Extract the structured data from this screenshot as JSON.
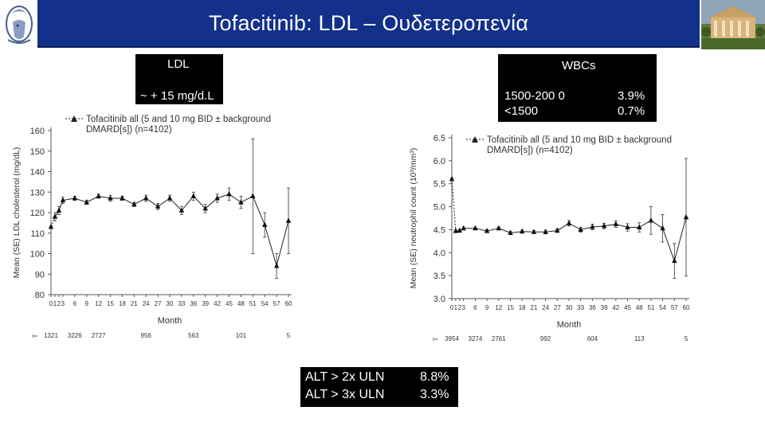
{
  "header": {
    "title": "Tofacitinib: LDL – Ουδετεροπενία"
  },
  "icons": {
    "left_logo": "athena-head-icon",
    "right_logo": "university-building-icon"
  },
  "ldl_box": {
    "label": "LDL",
    "change": "~ + 15 mg/d.L"
  },
  "wbc_box": {
    "label": "WBCs",
    "rows": [
      {
        "range": "1500-200 0",
        "pct": "3.9%"
      },
      {
        "range": "<1500",
        "pct": "0.7%"
      }
    ]
  },
  "alt_box": {
    "rows": [
      {
        "label": "ALT > 2x ULN",
        "pct": "8.8%"
      },
      {
        "label": "ALT > 3x ULN",
        "pct": "3.3%"
      }
    ]
  },
  "chart_data": [
    {
      "type": "line",
      "legend": [
        "Tofacitinib all (5 and 10 mg BID ± background",
        "DMARD[s]) (n=4102)"
      ],
      "xlabel": "Month",
      "ylabel": "Mean (SE) LDL cholesterol (mg/dL)",
      "ylim": [
        80,
        160
      ],
      "yticks": [
        80,
        90,
        100,
        110,
        120,
        130,
        140,
        150,
        160
      ],
      "xticks": [
        0,
        1,
        2,
        3,
        6,
        9,
        12,
        15,
        18,
        21,
        24,
        27,
        30,
        33,
        36,
        39,
        42,
        45,
        48,
        51,
        54,
        57,
        60
      ],
      "xtick_labels": [
        "0",
        "1",
        "2",
        "3",
        "6",
        "9",
        "12",
        "15",
        "18",
        "21",
        "24",
        "27",
        "30",
        "33",
        "36",
        "39",
        "42",
        "45",
        "48",
        "51",
        "54",
        "57",
        "60"
      ],
      "n_label": "n=",
      "n_at_risk": [
        {
          "month": 0,
          "n": "1321"
        },
        {
          "month": 6,
          "n": "3226"
        },
        {
          "month": 12,
          "n": "2727"
        },
        {
          "month": 24,
          "n": "956"
        },
        {
          "month": 36,
          "n": "563"
        },
        {
          "month": 48,
          "n": "101"
        },
        {
          "month": 60,
          "n": "5"
        }
      ],
      "points": [
        {
          "x": 0,
          "y": 113,
          "err": 0.5
        },
        {
          "x": 1,
          "y": 118,
          "err": 2
        },
        {
          "x": 2,
          "y": 121,
          "err": 2
        },
        {
          "x": 3,
          "y": 126,
          "err": 1.5
        },
        {
          "x": 6,
          "y": 127,
          "err": 1
        },
        {
          "x": 9,
          "y": 125,
          "err": 1
        },
        {
          "x": 12,
          "y": 128,
          "err": 1
        },
        {
          "x": 15,
          "y": 127,
          "err": 1.5
        },
        {
          "x": 18,
          "y": 127,
          "err": 1
        },
        {
          "x": 21,
          "y": 124,
          "err": 1
        },
        {
          "x": 24,
          "y": 127,
          "err": 1.5
        },
        {
          "x": 27,
          "y": 123,
          "err": 1.5
        },
        {
          "x": 30,
          "y": 127,
          "err": 1.5
        },
        {
          "x": 33,
          "y": 121,
          "err": 2
        },
        {
          "x": 36,
          "y": 128,
          "err": 2
        },
        {
          "x": 39,
          "y": 122,
          "err": 2
        },
        {
          "x": 42,
          "y": 127,
          "err": 2
        },
        {
          "x": 45,
          "y": 129,
          "err": 3
        },
        {
          "x": 48,
          "y": 125,
          "err": 3
        },
        {
          "x": 51,
          "y": 128,
          "err": 28
        },
        {
          "x": 54,
          "y": 114,
          "err": 6
        },
        {
          "x": 57,
          "y": 94,
          "err": 6
        },
        {
          "x": 60,
          "y": 116,
          "err": 16
        }
      ]
    },
    {
      "type": "line",
      "legend": [
        "Tofacitinib all (5 and 10 mg BID ± background",
        "DMARD[s]) (n=4102)"
      ],
      "xlabel": "Month",
      "ylabel": "Mean (SE) neutrophil count (10³/mm³)",
      "ylim": [
        3.0,
        6.5
      ],
      "yticks": [
        3.0,
        3.5,
        4.0,
        4.5,
        5.0,
        5.5,
        6.0,
        6.5
      ],
      "ytick_labels": [
        "3.0",
        "3.5",
        "4.0",
        "4.5",
        "5.0",
        "5.5",
        "6.0",
        "6.5"
      ],
      "xticks": [
        0,
        1,
        2,
        3,
        6,
        9,
        12,
        15,
        18,
        21,
        24,
        27,
        30,
        33,
        36,
        39,
        42,
        45,
        48,
        51,
        54,
        57,
        60
      ],
      "xtick_labels": [
        "0",
        "1",
        "2",
        "3",
        "6",
        "9",
        "12",
        "15",
        "18",
        "21",
        "24",
        "27",
        "30",
        "33",
        "36",
        "39",
        "42",
        "45",
        "48",
        "51",
        "54",
        "57",
        "60"
      ],
      "n_label": "n=",
      "n_at_risk": [
        {
          "month": 0,
          "n": "3954"
        },
        {
          "month": 6,
          "n": "3274"
        },
        {
          "month": 12,
          "n": "2761"
        },
        {
          "month": 24,
          "n": "992"
        },
        {
          "month": 36,
          "n": "604"
        },
        {
          "month": 48,
          "n": "113"
        },
        {
          "month": 60,
          "n": "5"
        }
      ],
      "points": [
        {
          "x": 0,
          "y": 5.6,
          "err": 0.03
        },
        {
          "x": 1,
          "y": 4.47,
          "err": 0.02
        },
        {
          "x": 2,
          "y": 4.48,
          "err": 0.02
        },
        {
          "x": 3,
          "y": 4.53,
          "err": 0.02
        },
        {
          "x": 6,
          "y": 4.53,
          "err": 0.02
        },
        {
          "x": 9,
          "y": 4.47,
          "err": 0.03
        },
        {
          "x": 12,
          "y": 4.53,
          "err": 0.03
        },
        {
          "x": 15,
          "y": 4.43,
          "err": 0.03
        },
        {
          "x": 18,
          "y": 4.46,
          "err": 0.03
        },
        {
          "x": 21,
          "y": 4.45,
          "err": 0.03
        },
        {
          "x": 24,
          "y": 4.45,
          "err": 0.04
        },
        {
          "x": 27,
          "y": 4.48,
          "err": 0.04
        },
        {
          "x": 30,
          "y": 4.64,
          "err": 0.06
        },
        {
          "x": 33,
          "y": 4.5,
          "err": 0.05
        },
        {
          "x": 36,
          "y": 4.56,
          "err": 0.06
        },
        {
          "x": 39,
          "y": 4.58,
          "err": 0.06
        },
        {
          "x": 42,
          "y": 4.62,
          "err": 0.07
        },
        {
          "x": 45,
          "y": 4.55,
          "err": 0.08
        },
        {
          "x": 48,
          "y": 4.55,
          "err": 0.1
        },
        {
          "x": 51,
          "y": 4.7,
          "err": 0.3
        },
        {
          "x": 54,
          "y": 4.53,
          "err": 0.3
        },
        {
          "x": 57,
          "y": 3.82,
          "err": 0.38
        },
        {
          "x": 60,
          "y": 4.77,
          "err": 1.28
        }
      ]
    }
  ]
}
